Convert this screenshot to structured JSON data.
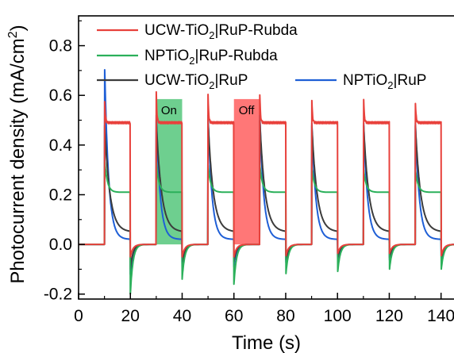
{
  "chart_data": {
    "type": "line",
    "xlabel": "Time (s)",
    "ylabel": "Photocurrent density (mA/cm",
    "ylabel_sup": "2",
    "ylabel_tail": ")",
    "xlim": [
      0,
      145
    ],
    "ylim": [
      -0.22,
      0.92
    ],
    "xticks": [
      0,
      20,
      40,
      60,
      80,
      100,
      120,
      140
    ],
    "yticks": [
      -0.2,
      0.0,
      0.2,
      0.4,
      0.6,
      0.8
    ],
    "ytick_labels": [
      "-0.2",
      "0.0",
      "0.2",
      "0.4",
      "0.6",
      "0.8"
    ],
    "light_on_periods": [
      [
        10,
        20
      ],
      [
        30,
        40
      ],
      [
        50,
        60
      ],
      [
        70,
        80
      ],
      [
        90,
        100
      ],
      [
        110,
        120
      ],
      [
        130,
        140
      ]
    ],
    "series": [
      {
        "name_main": "UCW-TiO",
        "name_sub": "2",
        "name_tail": "|RuP-Rubda",
        "color": "#e8413c",
        "baseline": 0.0,
        "plateau": 0.49,
        "spikes": [
          0.62,
          0.61,
          0.6,
          0.6,
          0.62,
          0.63,
          0.61
        ],
        "dips": [
          -0.05,
          -0.05,
          -0.05,
          -0.05,
          -0.04,
          -0.04,
          -0.05
        ],
        "settle_tau": 0.25
      },
      {
        "name_main": "NPTiO",
        "name_sub": "2",
        "name_tail": "|RuP-Rubda",
        "color": "#2bb05a",
        "baseline": 0.0,
        "plateau": 0.21,
        "spikes": [
          0.35,
          0.33,
          0.32,
          0.32,
          0.32,
          0.31,
          0.31
        ],
        "dips": [
          -0.2,
          -0.14,
          -0.16,
          -0.13,
          -0.12,
          -0.11,
          -0.11
        ],
        "settle_tau": 1.0
      },
      {
        "name_main": "UCW-TiO",
        "name_sub": "2",
        "name_tail": "|RuP",
        "color": "#3c3c3c",
        "baseline": 0.0,
        "plateau": 0.05,
        "spikes": [
          0.5,
          0.5,
          0.5,
          0.5,
          0.5,
          0.5,
          0.5
        ],
        "dips": [
          -0.1,
          -0.08,
          -0.07,
          -0.07,
          -0.06,
          -0.06,
          -0.06
        ],
        "settle_tau": 2.0
      },
      {
        "name_main": "NPTiO",
        "name_sub": "2",
        "name_tail": "|RuP",
        "color": "#1f5fd6",
        "baseline": 0.0,
        "plateau": 0.02,
        "spikes": [
          0.75,
          0.52,
          0.52,
          0.52,
          0.52,
          0.52,
          0.52
        ],
        "dips": [
          -0.12,
          -0.1,
          -0.09,
          -0.08,
          -0.07,
          -0.07,
          -0.07
        ],
        "settle_tau": 1.5
      }
    ],
    "highlights": [
      {
        "label": "On",
        "x0": 30,
        "x1": 40,
        "y0": 0.0,
        "y1": 0.585,
        "color": "#3dbf6a"
      },
      {
        "label": "Off",
        "x0": 60,
        "x1": 70,
        "y0": 0.0,
        "y1": 0.585,
        "color": "#ff4a4a"
      }
    ],
    "legend_position": "top"
  }
}
